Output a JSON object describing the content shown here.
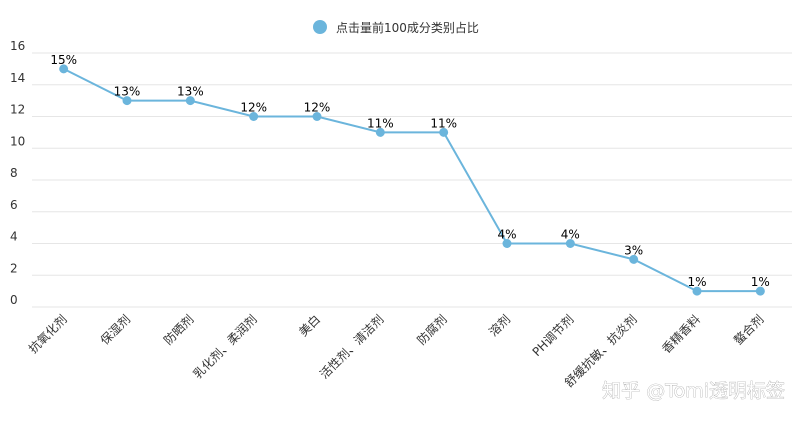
{
  "chart_data": {
    "type": "line",
    "title": "",
    "legend": {
      "position": "top-center",
      "label": "点击量前100成分类别占比"
    },
    "categories": [
      "抗氧化剂",
      "保湿剂",
      "防晒剂",
      "乳化剂、柔润剂",
      "美白",
      "活性剂、清洁剂",
      "防腐剂",
      "溶剂",
      "PH调节剂",
      "舒缓抗敏、抗炎剂",
      "香精香料",
      "螯合剂"
    ],
    "series": [
      {
        "name": "点击量前100成分类别占比",
        "values": [
          15,
          13,
          13,
          12,
          12,
          11,
          11,
          4,
          4,
          3,
          1,
          1
        ],
        "labels": [
          "15%",
          "13%",
          "13%",
          "12%",
          "12%",
          "11%",
          "11%",
          "4%",
          "4%",
          "3%",
          "1%",
          "1%"
        ]
      }
    ],
    "ylim": [
      0,
      16
    ],
    "yticks": [
      0,
      2,
      4,
      6,
      8,
      10,
      12,
      14,
      16
    ],
    "grid": true,
    "color": "#6bb5dc"
  },
  "watermark": "知乎 @Tomi透明标签"
}
